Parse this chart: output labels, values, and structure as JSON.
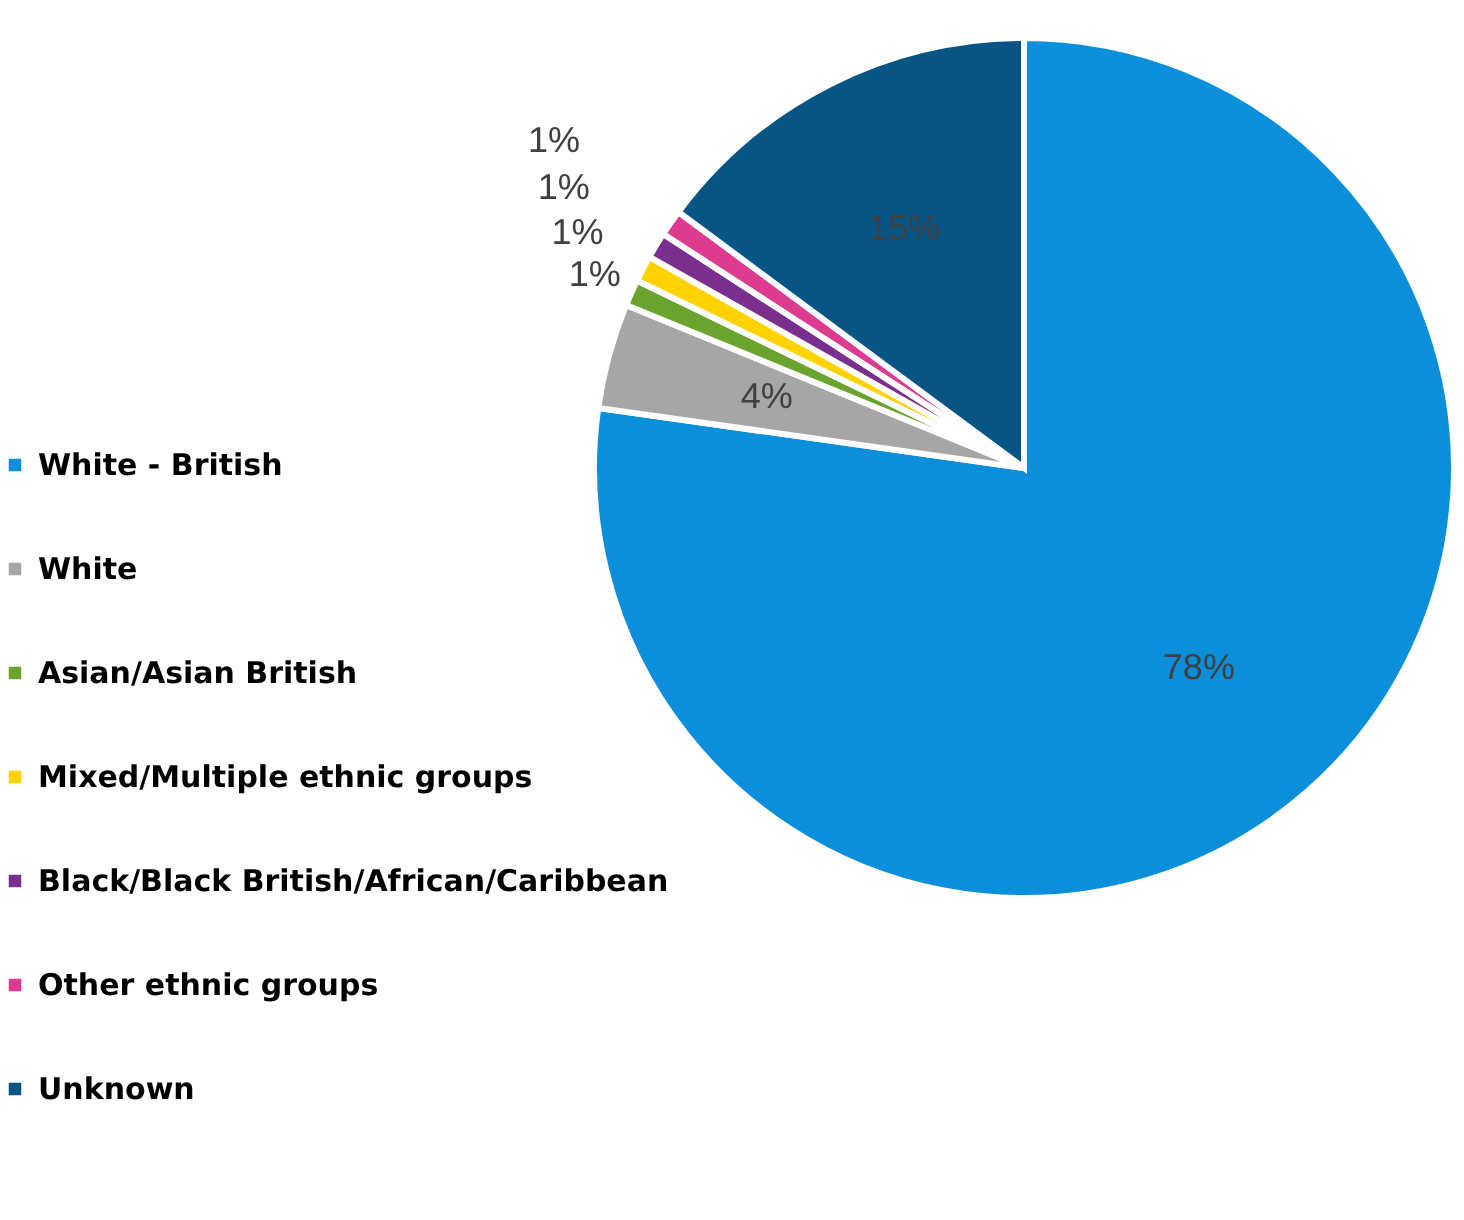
{
  "chart_data": {
    "type": "pie",
    "categories": [
      "White - British",
      "White",
      "Asian/Asian British",
      "Mixed/Multiple ethnic groups",
      "Black/Black British/African/Caribbean",
      "Other ethnic groups",
      "Unknown"
    ],
    "values": [
      78,
      4,
      1,
      1,
      1,
      1,
      15
    ],
    "value_labels": [
      "78%",
      "4%",
      "1%",
      "1%",
      "1%",
      "1%",
      "15%"
    ],
    "colors": [
      "#0b8fdb",
      "#a6a6a6",
      "#6aa42f",
      "#ffd200",
      "#7a2f8e",
      "#dd3b8e",
      "#075584"
    ],
    "legend": "left"
  }
}
